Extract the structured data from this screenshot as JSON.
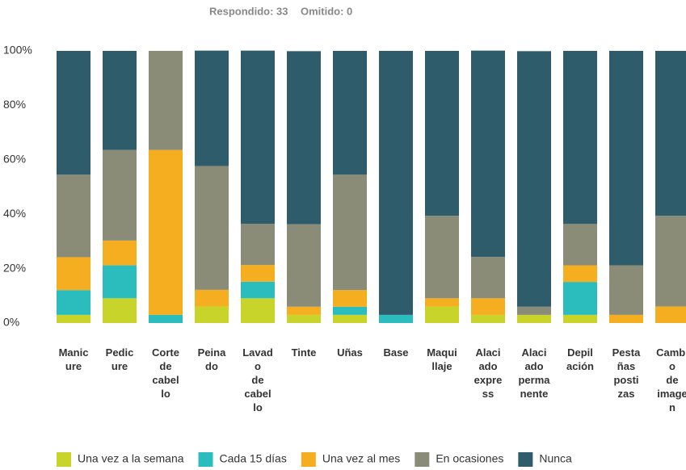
{
  "chart_data": {
    "type": "stacked_bar",
    "respondido": "Respondido: 33",
    "omitido": "Omitido: 0",
    "categories": [
      "Manicure",
      "Pedicure",
      "Corte de cabello",
      "Peinado",
      "Lavado de cabello",
      "Tinte",
      "Uñas",
      "Base",
      "Maquillaje",
      "Alaciado express",
      "Alaciado permanente",
      "Depilación",
      "Pestañas postizas",
      "Cambio de imagen"
    ],
    "series": [
      {
        "name": "Una vez a la semana",
        "color": "#c8d42a",
        "values": [
          3.0,
          9.1,
          0,
          6.1,
          9.1,
          3.0,
          3.0,
          0,
          6.1,
          3.0,
          3.0,
          3.0,
          0,
          0
        ]
      },
      {
        "name": "Cada 15 días",
        "color": "#2bbdbd",
        "values": [
          9.1,
          12.1,
          3.0,
          0,
          6.1,
          0,
          3.0,
          3.0,
          0,
          0,
          0,
          12.1,
          0,
          0
        ]
      },
      {
        "name": "Una vez al mes",
        "color": "#f5ae1f",
        "values": [
          12.1,
          9.1,
          60.6,
          6.1,
          6.1,
          3.0,
          6.1,
          0,
          3.0,
          6.1,
          0,
          6.1,
          3.0,
          6.1
        ]
      },
      {
        "name": "En ocasiones",
        "color": "#8a8c78",
        "values": [
          30.3,
          33.3,
          36.4,
          45.5,
          15.2,
          30.3,
          42.4,
          0,
          30.3,
          15.2,
          3.0,
          15.2,
          18.2,
          33.3
        ]
      },
      {
        "name": "Nunca",
        "color": "#2e5c6b",
        "values": [
          45.5,
          36.4,
          0,
          42.4,
          63.6,
          63.6,
          45.5,
          97.0,
          60.6,
          75.8,
          93.9,
          63.6,
          78.8,
          60.6
        ]
      }
    ],
    "ylim": [
      0,
      100
    ],
    "yticks": [
      {
        "value": 0,
        "label": "0%"
      },
      {
        "value": 20,
        "label": "20%"
      },
      {
        "value": 40,
        "label": "40%"
      },
      {
        "value": 60,
        "label": "60%"
      },
      {
        "value": 80,
        "label": "80%"
      },
      {
        "value": 100,
        "label": "100%"
      }
    ]
  }
}
